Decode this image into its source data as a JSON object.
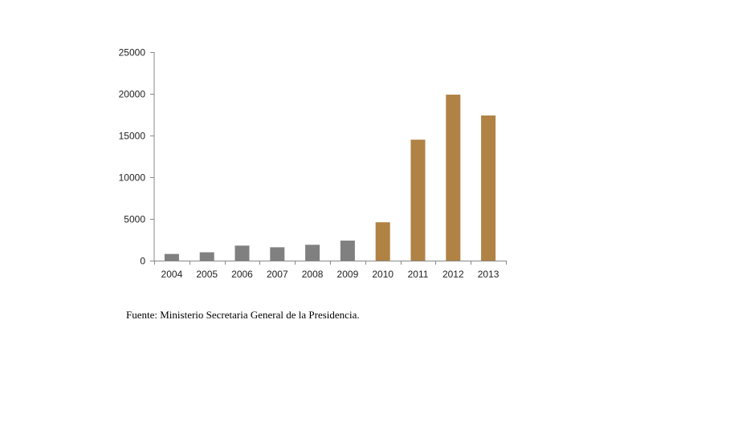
{
  "chart_data": {
    "type": "bar",
    "title": "",
    "xlabel": "",
    "ylabel": "",
    "categories": [
      "2004",
      "2005",
      "2006",
      "2007",
      "2008",
      "2009",
      "2010",
      "2011",
      "2012",
      "2013"
    ],
    "values": [
      800,
      1000,
      1800,
      1600,
      1900,
      2400,
      4600,
      14500,
      19900,
      17400
    ],
    "bar_colors": [
      "#808080",
      "#808080",
      "#808080",
      "#808080",
      "#808080",
      "#808080",
      "#b08244",
      "#b08244",
      "#b08244",
      "#b08244"
    ],
    "ylim": [
      0,
      25000
    ],
    "yticks": [
      "0",
      "5000",
      "10000",
      "15000",
      "20000",
      "25000"
    ],
    "ytick_values": [
      0,
      5000,
      10000,
      15000,
      20000,
      25000
    ],
    "grid": false,
    "legend": "none"
  },
  "source": "Fuente: Ministerio Secretaria General de la Presidencia."
}
